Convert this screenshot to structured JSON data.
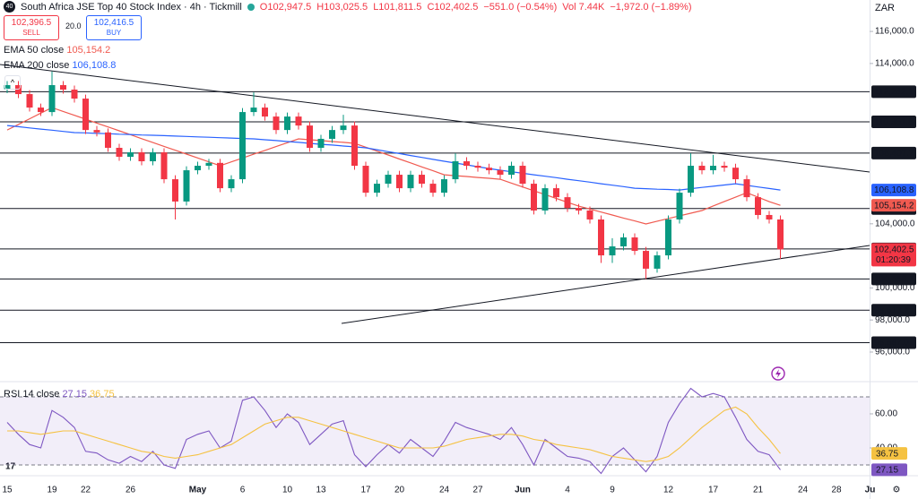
{
  "chart_data": {
    "type": "candlestick",
    "title": "South Africa JSE Top 40 Stock Index · 4h · Tickmill",
    "symbol_badge": "40",
    "quote": {
      "open": "O102,947.5",
      "high": "H103,025.5",
      "low": "L101,811.5",
      "close": "C102,402.5",
      "change": "−551.0 (−0.54%)",
      "volume": "Vol 7.44K",
      "volume_change": "−1,972.0 (−1.89%)"
    },
    "trade": {
      "sell_price": "102,396.5",
      "sell": "SELL",
      "spread": "20.0",
      "buy_price": "102,416.5",
      "buy": "BUY"
    },
    "currency": "ZAR",
    "close_label": "102,402.5",
    "countdown": "01:20:39",
    "up_color": "#089981",
    "down_color": "#f23645",
    "categories": [
      "15",
      null,
      null,
      null,
      "19",
      null,
      null,
      "22",
      null,
      null,
      null,
      "26",
      null,
      null,
      null,
      null,
      null,
      "May",
      null,
      null,
      null,
      "6",
      null,
      null,
      null,
      "10",
      null,
      null,
      "13",
      null,
      null,
      null,
      "17",
      null,
      null,
      "20",
      null,
      null,
      null,
      "24",
      null,
      null,
      "27",
      null,
      null,
      null,
      "Jun",
      null,
      null,
      null,
      "4",
      null,
      null,
      null,
      "9",
      null,
      null,
      null,
      null,
      "12",
      null,
      null,
      null,
      "17",
      null,
      null,
      null,
      "21",
      null,
      null,
      null,
      "24",
      null,
      null,
      "28",
      null,
      null,
      "Ju"
    ],
    "ohlc": [
      [
        112400,
        112900,
        112150,
        112650
      ],
      [
        112650,
        112900,
        111840,
        112090
      ],
      [
        112090,
        112340,
        111000,
        111250
      ],
      [
        111250,
        111500,
        110720,
        110970
      ],
      [
        110970,
        113500,
        110720,
        112650
      ],
      [
        112650,
        112900,
        112120,
        112370
      ],
      [
        112370,
        112620,
        111560,
        111810
      ],
      [
        111810,
        112060,
        109600,
        109850
      ],
      [
        109850,
        110100,
        109450,
        109700
      ],
      [
        109700,
        109950,
        108490,
        108740
      ],
      [
        108740,
        108990,
        107930,
        108180
      ],
      [
        108180,
        108710,
        107930,
        108460
      ],
      [
        108460,
        108710,
        107650,
        107900
      ],
      [
        107900,
        108710,
        107650,
        108460
      ],
      [
        108460,
        108710,
        106530,
        106780
      ],
      [
        106780,
        107030,
        104270,
        105390
      ],
      [
        105390,
        107590,
        105140,
        107340
      ],
      [
        107340,
        107870,
        107090,
        107620
      ],
      [
        107620,
        108050,
        107370,
        107800
      ],
      [
        107800,
        108050,
        105970,
        106220
      ],
      [
        106220,
        107030,
        105970,
        106780
      ],
      [
        106780,
        111220,
        106530,
        110970
      ],
      [
        110970,
        112200,
        110720,
        111250
      ],
      [
        111250,
        111500,
        110440,
        110690
      ],
      [
        110690,
        110940,
        109600,
        109850
      ],
      [
        109850,
        110940,
        109600,
        110690
      ],
      [
        110690,
        110940,
        109880,
        110130
      ],
      [
        110130,
        110380,
        108490,
        108740
      ],
      [
        108740,
        109550,
        108490,
        109300
      ],
      [
        109300,
        110100,
        109050,
        109850
      ],
      [
        109850,
        110800,
        109600,
        110130
      ],
      [
        110130,
        110380,
        107370,
        107620
      ],
      [
        107620,
        107870,
        105690,
        105940
      ],
      [
        105940,
        106750,
        105690,
        106500
      ],
      [
        106500,
        107310,
        106250,
        107060
      ],
      [
        107060,
        107310,
        105970,
        106220
      ],
      [
        106220,
        107310,
        105970,
        107060
      ],
      [
        107060,
        107310,
        106250,
        106500
      ],
      [
        106500,
        106750,
        105690,
        105940
      ],
      [
        105940,
        107030,
        105690,
        106780
      ],
      [
        106780,
        108400,
        106530,
        107900
      ],
      [
        107900,
        108150,
        107370,
        107620
      ],
      [
        107620,
        107870,
        107250,
        107500
      ],
      [
        107500,
        107750,
        107090,
        107340
      ],
      [
        107340,
        107590,
        106810,
        107060
      ],
      [
        107060,
        107870,
        106810,
        107620
      ],
      [
        107620,
        107870,
        106250,
        106500
      ],
      [
        106500,
        106750,
        104580,
        104830
      ],
      [
        104830,
        106470,
        104580,
        106220
      ],
      [
        106220,
        106470,
        105410,
        105660
      ],
      [
        105660,
        105910,
        104740,
        104990
      ],
      [
        104990,
        105240,
        104580,
        104830
      ],
      [
        104830,
        105080,
        104020,
        104270
      ],
      [
        104270,
        104520,
        101560,
        102030
      ],
      [
        102030,
        103100,
        101560,
        102590
      ],
      [
        102590,
        103400,
        102340,
        103150
      ],
      [
        103150,
        103400,
        102060,
        102310
      ],
      [
        102310,
        102560,
        100560,
        101200
      ],
      [
        101200,
        102280,
        100950,
        102030
      ],
      [
        102030,
        104520,
        101780,
        104270
      ],
      [
        104270,
        106190,
        104020,
        105940
      ],
      [
        105940,
        108400,
        105690,
        107620
      ],
      [
        107620,
        107870,
        107090,
        107340
      ],
      [
        107340,
        108300,
        107090,
        107620
      ],
      [
        107620,
        107870,
        107250,
        107500
      ],
      [
        107500,
        107750,
        106530,
        106780
      ],
      [
        106780,
        107030,
        105410,
        105660
      ],
      [
        105660,
        105910,
        104300,
        104550
      ],
      [
        104550,
        104800,
        104020,
        104270
      ],
      [
        104270,
        104520,
        101811.5,
        102402.5
      ],
      null,
      null,
      null,
      null,
      null,
      null,
      null,
      null
    ],
    "series": [
      {
        "name": "EMA 50 close",
        "color": "#f05a50",
        "value_label": "105,154.2",
        "values": [
          109850,
          110200,
          110550,
          110900,
          111250,
          111010,
          110770,
          110530,
          110280,
          110040,
          109800,
          109560,
          109310,
          109070,
          108830,
          108590,
          108350,
          108110,
          107860,
          107620,
          107860,
          108100,
          108340,
          108580,
          108820,
          109060,
          109300,
          109240,
          109190,
          109130,
          109080,
          109020,
          108780,
          108530,
          108290,
          108040,
          107800,
          107550,
          107310,
          107060,
          107000,
          106950,
          106890,
          106840,
          106780,
          106540,
          106300,
          106060,
          105820,
          105580,
          105340,
          105100,
          104920,
          104730,
          104550,
          104360,
          104180,
          103990,
          104160,
          104330,
          104500,
          104660,
          104830,
          105110,
          105390,
          105660,
          105940,
          105660,
          105380,
          105154.2,
          null,
          null,
          null,
          null,
          null,
          null,
          null,
          null
        ]
      },
      {
        "name": "EMA 200 close",
        "color": "#2962ff",
        "value_label": "106,108.8",
        "values": [
          110130,
          110060,
          109980,
          109910,
          109840,
          109760,
          109690,
          109670,
          109640,
          109620,
          109590,
          109570,
          109540,
          109520,
          109500,
          109470,
          109450,
          109420,
          109400,
          109370,
          109350,
          109320,
          109300,
          109240,
          109190,
          109130,
          109080,
          109020,
          108960,
          108910,
          108850,
          108800,
          108740,
          108620,
          108500,
          108380,
          108260,
          108140,
          108020,
          107900,
          107790,
          107680,
          107560,
          107450,
          107340,
          107250,
          107150,
          107060,
          106970,
          106880,
          106780,
          106690,
          106600,
          106500,
          106410,
          106320,
          106220,
          106190,
          106160,
          106140,
          106110,
          106190,
          106270,
          106340,
          106420,
          106500,
          106400,
          106300,
          106200,
          106108.8,
          null,
          null,
          null,
          null,
          null,
          null,
          null,
          null
        ]
      }
    ],
    "ylim": [
      94210,
      117960
    ],
    "yticks": [
      {
        "value": 116000,
        "label": "116,000.0"
      },
      {
        "value": 114000,
        "label": "114,000.0"
      },
      {
        "value": 104000,
        "label": "104,000.0"
      },
      {
        "value": 100000,
        "label": "100,000.0"
      },
      {
        "value": 98000,
        "label": "98,000.0"
      },
      {
        "value": 96000,
        "label": "96,000.0"
      }
    ],
    "levels": [
      {
        "value": 112242.1,
        "label": "112,242.1"
      },
      {
        "value": 110361.8,
        "label": "110,361.8"
      },
      {
        "value": 108407.7,
        "label": "108,407.7"
      },
      {
        "value": 104951.0,
        "label": "104,951.0"
      },
      {
        "value": 102430.5,
        "label": "102,430.5"
      },
      {
        "value": 100558.1,
        "label": "100,558.1"
      },
      {
        "value": 98613.7,
        "label": "98,613.7"
      },
      {
        "value": 96587.0,
        "label": "96,587.0"
      }
    ],
    "rsi": {
      "title": "RSI 14 close",
      "ylim": [
        24.2,
        78.4
      ],
      "yticks": [
        {
          "value": 60,
          "label": "60.00"
        },
        {
          "value": 40,
          "label": "40.00"
        }
      ],
      "band": [
        30,
        70
      ],
      "series": [
        {
          "color": "#7e57c2",
          "value_label": "27.15",
          "values": [
            55,
            48,
            42,
            40,
            62,
            58,
            52,
            38,
            37,
            33,
            31,
            35,
            32,
            38,
            30,
            28,
            45,
            48,
            50,
            40,
            44,
            68,
            70,
            62,
            52,
            60,
            55,
            42,
            48,
            54,
            56,
            36,
            29,
            36,
            42,
            37,
            45,
            40,
            35,
            44,
            55,
            52,
            50,
            48,
            45,
            52,
            42,
            30,
            45,
            40,
            35,
            34,
            32,
            25,
            35,
            40,
            33,
            26,
            35,
            55,
            66,
            75,
            70,
            72,
            70,
            58,
            45,
            38,
            36,
            27.15,
            null,
            null,
            null,
            null,
            null,
            null,
            null,
            null
          ]
        },
        {
          "color": "#f5c242",
          "value_label": "36.75",
          "values": [
            50,
            50,
            49,
            48,
            49,
            50,
            50,
            48,
            46,
            44,
            42,
            40,
            38,
            37,
            35,
            34,
            35,
            36,
            38,
            40,
            42,
            46,
            50,
            54,
            56,
            58,
            58,
            56,
            54,
            52,
            50,
            48,
            46,
            44,
            42,
            40,
            40,
            40,
            40,
            41,
            43,
            45,
            46,
            47,
            48,
            48,
            47,
            45,
            44,
            42,
            41,
            40,
            39,
            37,
            35,
            34,
            33,
            32,
            33,
            35,
            40,
            46,
            52,
            57,
            62,
            64,
            60,
            52,
            45,
            36.75,
            null,
            null,
            null,
            null,
            null,
            null,
            null,
            null
          ]
        }
      ]
    }
  }
}
